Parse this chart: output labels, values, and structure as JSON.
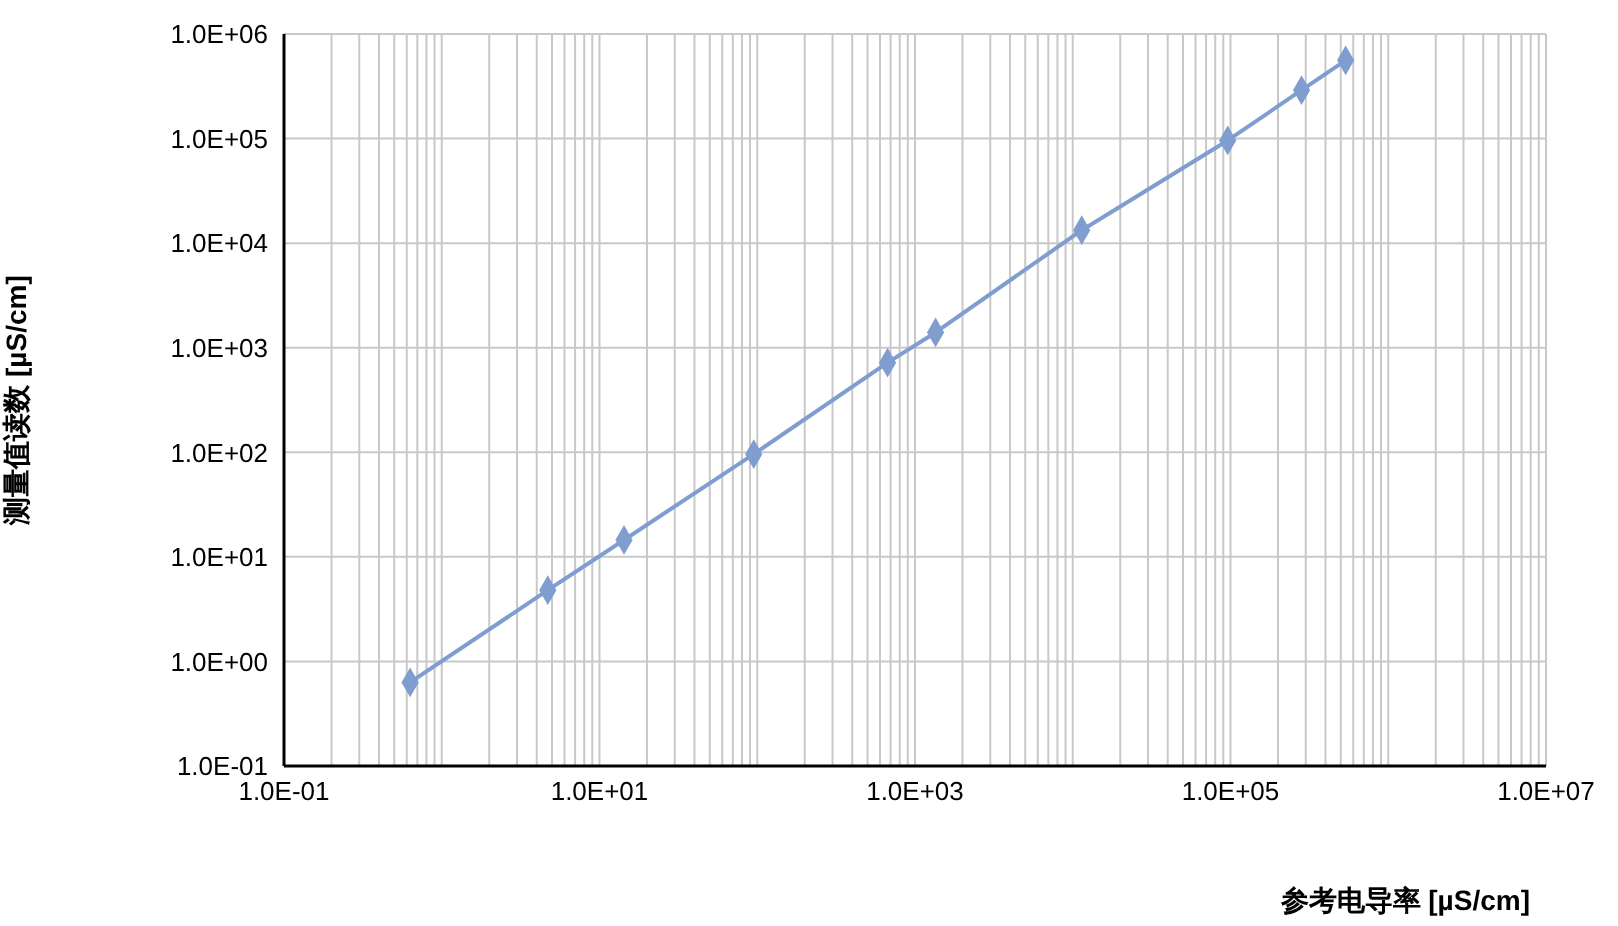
{
  "chart_data": {
    "type": "line",
    "xlabel": "参考电导率 [µS/cm]",
    "ylabel": "测量值读数 [µS/cm]",
    "log": "xy",
    "grid": true,
    "marker": "diamond",
    "line_style": "solid",
    "x": [
      0.63,
      4.7,
      14.3,
      95,
      670,
      1350,
      11400,
      96000,
      282000,
      537000
    ],
    "series": [
      {
        "color": "#7f9dcf",
        "values": [
          0.63,
          4.8,
          14.5,
          96,
          720,
          1400,
          13300,
          96000,
          290000,
          560000
        ]
      }
    ],
    "xlim": [
      0.1,
      10000000
    ],
    "ylim": [
      0.1,
      1000000
    ],
    "xticks": [
      {
        "value": 0.1,
        "label": "1.0E-01"
      },
      {
        "value": 0.2,
        "label": null
      },
      {
        "value": 0.3,
        "label": null
      },
      {
        "value": 0.4,
        "label": null
      },
      {
        "value": 0.5,
        "label": null
      },
      {
        "value": 0.6,
        "label": null
      },
      {
        "value": 0.7,
        "label": null
      },
      {
        "value": 0.8,
        "label": null
      },
      {
        "value": 0.9,
        "label": null
      },
      {
        "value": 1,
        "label": null
      },
      {
        "value": 2,
        "label": null
      },
      {
        "value": 3,
        "label": null
      },
      {
        "value": 4,
        "label": null
      },
      {
        "value": 5,
        "label": null
      },
      {
        "value": 6,
        "label": null
      },
      {
        "value": 7,
        "label": null
      },
      {
        "value": 8,
        "label": null
      },
      {
        "value": 9,
        "label": null
      },
      {
        "value": 10,
        "label": "1.0E+01"
      },
      {
        "value": 20,
        "label": null
      },
      {
        "value": 30,
        "label": null
      },
      {
        "value": 40,
        "label": null
      },
      {
        "value": 50,
        "label": null
      },
      {
        "value": 60,
        "label": null
      },
      {
        "value": 70,
        "label": null
      },
      {
        "value": 80,
        "label": null
      },
      {
        "value": 90,
        "label": null
      },
      {
        "value": 100,
        "label": null
      },
      {
        "value": 200,
        "label": null
      },
      {
        "value": 300,
        "label": null
      },
      {
        "value": 400,
        "label": null
      },
      {
        "value": 500,
        "label": null
      },
      {
        "value": 600,
        "label": null
      },
      {
        "value": 700,
        "label": null
      },
      {
        "value": 800,
        "label": null
      },
      {
        "value": 900,
        "label": null
      },
      {
        "value": 1000,
        "label": "1.0E+03"
      },
      {
        "value": 2000,
        "label": null
      },
      {
        "value": 3000,
        "label": null
      },
      {
        "value": 4000,
        "label": null
      },
      {
        "value": 5000,
        "label": null
      },
      {
        "value": 6000,
        "label": null
      },
      {
        "value": 7000,
        "label": null
      },
      {
        "value": 8000,
        "label": null
      },
      {
        "value": 9000,
        "label": null
      },
      {
        "value": 10000,
        "label": null
      },
      {
        "value": 20000,
        "label": null
      },
      {
        "value": 30000,
        "label": null
      },
      {
        "value": 40000,
        "label": null
      },
      {
        "value": 50000,
        "label": null
      },
      {
        "value": 60000,
        "label": null
      },
      {
        "value": 70000,
        "label": null
      },
      {
        "value": 80000,
        "label": null
      },
      {
        "value": 90000,
        "label": null
      },
      {
        "value": 100000,
        "label": "1.0E+05"
      },
      {
        "value": 200000,
        "label": null
      },
      {
        "value": 300000,
        "label": null
      },
      {
        "value": 400000,
        "label": null
      },
      {
        "value": 500000,
        "label": null
      },
      {
        "value": 600000,
        "label": null
      },
      {
        "value": 700000,
        "label": null
      },
      {
        "value": 800000,
        "label": null
      },
      {
        "value": 900000,
        "label": null
      },
      {
        "value": 1000000,
        "label": null
      },
      {
        "value": 2000000,
        "label": null
      },
      {
        "value": 3000000,
        "label": null
      },
      {
        "value": 4000000,
        "label": null
      },
      {
        "value": 5000000,
        "label": null
      },
      {
        "value": 6000000,
        "label": null
      },
      {
        "value": 7000000,
        "label": null
      },
      {
        "value": 8000000,
        "label": null
      },
      {
        "value": 9000000,
        "label": null
      },
      {
        "value": 10000000,
        "label": "1.0E+07"
      }
    ],
    "yticks": [
      {
        "value": 0.1,
        "label": "1.0E-01"
      },
      {
        "value": 1,
        "label": "1.0E+00"
      },
      {
        "value": 10,
        "label": "1.0E+01"
      },
      {
        "value": 100,
        "label": "1.0E+02"
      },
      {
        "value": 1000,
        "label": "1.0E+03"
      },
      {
        "value": 10000,
        "label": "1.0E+04"
      },
      {
        "value": 100000,
        "label": "1.0E+05"
      },
      {
        "value": 1000000,
        "label": "1.0E+06"
      }
    ]
  }
}
